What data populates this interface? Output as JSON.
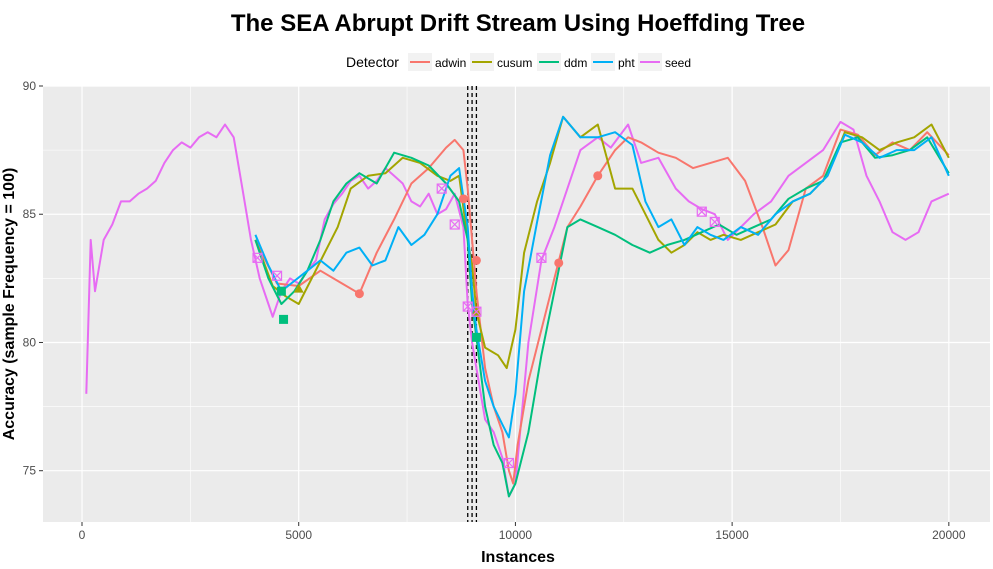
{
  "chart_data": {
    "type": "line",
    "title": "The SEA Abrupt Drift Stream Using Hoeffding Tree",
    "xlabel": "Instances",
    "ylabel": "Accuracy (sample Frequency = 100)",
    "xlim": [
      -900,
      20950
    ],
    "ylim": [
      73,
      90
    ],
    "xticks": [
      0,
      5000,
      10000,
      15000,
      20000
    ],
    "xtick_labels": [
      "0",
      "5000",
      "10000",
      "15000",
      "20000"
    ],
    "yticks": [
      75,
      80,
      85,
      90
    ],
    "ytick_labels": [
      "75",
      "80",
      "85",
      "90"
    ],
    "grid": true,
    "legend": {
      "title": "Detector",
      "position": "top"
    },
    "drift_lines": [
      8900,
      9000,
      9100
    ],
    "series": [
      {
        "name": "adwin",
        "color": "#F8766D",
        "points": [
          [
            4000,
            84
          ],
          [
            4500,
            82.3
          ],
          [
            5000,
            82.2
          ],
          [
            5500,
            82.8
          ],
          [
            6000,
            82.3
          ],
          [
            6400,
            81.9
          ],
          [
            6800,
            83.5
          ],
          [
            7200,
            84.8
          ],
          [
            7600,
            86.2
          ],
          [
            8000,
            86.8
          ],
          [
            8400,
            87.6
          ],
          [
            8600,
            87.9
          ],
          [
            8800,
            87.5
          ],
          [
            8900,
            86
          ],
          [
            9000,
            84
          ],
          [
            9100,
            82
          ],
          [
            9300,
            79
          ],
          [
            9500,
            77.5
          ],
          [
            9700,
            76.5
          ],
          [
            9850,
            75
          ],
          [
            9950,
            74.5
          ],
          [
            10050,
            76
          ],
          [
            10300,
            78.5
          ],
          [
            10600,
            80.5
          ],
          [
            10900,
            82.5
          ],
          [
            11200,
            84.5
          ],
          [
            11500,
            85.3
          ],
          [
            11900,
            86.5
          ],
          [
            12300,
            87.5
          ],
          [
            12600,
            88
          ],
          [
            12900,
            87.8
          ],
          [
            13300,
            87.4
          ],
          [
            13700,
            87.2
          ],
          [
            14100,
            86.8
          ],
          [
            14500,
            87
          ],
          [
            14900,
            87.2
          ],
          [
            15300,
            86.3
          ],
          [
            15700,
            84.5
          ],
          [
            16000,
            83
          ],
          [
            16300,
            83.6
          ],
          [
            16700,
            86
          ],
          [
            17100,
            86.5
          ],
          [
            17500,
            88.3
          ],
          [
            17900,
            88.1
          ],
          [
            18300,
            87.3
          ],
          [
            18700,
            87.8
          ],
          [
            19100,
            87.5
          ],
          [
            19500,
            88.2
          ],
          [
            20000,
            87.3
          ]
        ],
        "markers": [
          [
            6400,
            81.9
          ],
          [
            8800,
            85.6
          ],
          [
            9100,
            83.2
          ],
          [
            11000,
            83.1
          ],
          [
            11900,
            86.5
          ]
        ]
      },
      {
        "name": "cusum",
        "color": "#A3A500",
        "points": [
          [
            4000,
            84
          ],
          [
            4400,
            82.2
          ],
          [
            4700,
            81.8
          ],
          [
            5000,
            81.5
          ],
          [
            5300,
            82.5
          ],
          [
            5600,
            83.5
          ],
          [
            5900,
            84.5
          ],
          [
            6200,
            86
          ],
          [
            6600,
            86.5
          ],
          [
            7000,
            86.6
          ],
          [
            7400,
            87.2
          ],
          [
            7800,
            87
          ],
          [
            8200,
            86.5
          ],
          [
            8500,
            86.3
          ],
          [
            8700,
            86.5
          ],
          [
            8900,
            84
          ],
          [
            9000,
            83
          ],
          [
            9100,
            81.2
          ],
          [
            9300,
            79.8
          ],
          [
            9600,
            79.5
          ],
          [
            9800,
            79
          ],
          [
            10000,
            80.5
          ],
          [
            10200,
            83.5
          ],
          [
            10500,
            85.5
          ],
          [
            10800,
            87
          ],
          [
            11100,
            88.8
          ],
          [
            11500,
            88
          ],
          [
            11900,
            88.5
          ],
          [
            12300,
            86
          ],
          [
            12700,
            86
          ],
          [
            13000,
            85
          ],
          [
            13300,
            84
          ],
          [
            13600,
            83.5
          ],
          [
            13900,
            83.8
          ],
          [
            14200,
            84.3
          ],
          [
            14500,
            84
          ],
          [
            14800,
            84.2
          ],
          [
            15200,
            84
          ],
          [
            15600,
            84.3
          ],
          [
            16000,
            84.6
          ],
          [
            16400,
            85.5
          ],
          [
            16800,
            85.8
          ],
          [
            17200,
            86.5
          ],
          [
            17600,
            88.2
          ],
          [
            18000,
            88
          ],
          [
            18400,
            87.5
          ],
          [
            18800,
            87.8
          ],
          [
            19200,
            88
          ],
          [
            19600,
            88.5
          ],
          [
            20000,
            87.2
          ]
        ],
        "markers": [
          [
            5000,
            82.1
          ],
          [
            9100,
            81.2
          ]
        ]
      },
      {
        "name": "ddm",
        "color": "#00BF7D",
        "points": [
          [
            4000,
            84
          ],
          [
            4300,
            82.5
          ],
          [
            4600,
            81.5
          ],
          [
            4900,
            82
          ],
          [
            5200,
            82.8
          ],
          [
            5500,
            84
          ],
          [
            5800,
            85.5
          ],
          [
            6100,
            86.2
          ],
          [
            6400,
            86.6
          ],
          [
            6800,
            86.2
          ],
          [
            7200,
            87.4
          ],
          [
            7600,
            87.2
          ],
          [
            8000,
            86.9
          ],
          [
            8400,
            86.2
          ],
          [
            8700,
            85.5
          ],
          [
            8900,
            84
          ],
          [
            9000,
            81.5
          ],
          [
            9100,
            80.2
          ],
          [
            9300,
            77.5
          ],
          [
            9500,
            76
          ],
          [
            9700,
            75.3
          ],
          [
            9850,
            74
          ],
          [
            10000,
            74.5
          ],
          [
            10300,
            76.5
          ],
          [
            10600,
            79.5
          ],
          [
            10900,
            82
          ],
          [
            11200,
            84.5
          ],
          [
            11500,
            84.8
          ],
          [
            11900,
            84.5
          ],
          [
            12300,
            84.2
          ],
          [
            12700,
            83.8
          ],
          [
            13100,
            83.5
          ],
          [
            13500,
            83.8
          ],
          [
            13900,
            84
          ],
          [
            14300,
            84.3
          ],
          [
            14700,
            84.6
          ],
          [
            15100,
            84.2
          ],
          [
            15500,
            84.5
          ],
          [
            15900,
            84.8
          ],
          [
            16300,
            85.6
          ],
          [
            16700,
            86
          ],
          [
            17100,
            86.3
          ],
          [
            17500,
            87.8
          ],
          [
            17900,
            88
          ],
          [
            18300,
            87.2
          ],
          [
            18700,
            87.3
          ],
          [
            19100,
            87.5
          ],
          [
            19500,
            88
          ],
          [
            20000,
            86.6
          ]
        ],
        "markers": [
          [
            4600,
            82
          ],
          [
            4650,
            80.9
          ],
          [
            9100,
            80.2
          ]
        ]
      },
      {
        "name": "pht",
        "color": "#00B0F6",
        "points": [
          [
            4000,
            84.2
          ],
          [
            4300,
            83
          ],
          [
            4600,
            82
          ],
          [
            4900,
            82.4
          ],
          [
            5200,
            82.8
          ],
          [
            5500,
            83.2
          ],
          [
            5800,
            82.8
          ],
          [
            6100,
            83.5
          ],
          [
            6400,
            83.7
          ],
          [
            6700,
            83
          ],
          [
            7000,
            83.2
          ],
          [
            7300,
            84.5
          ],
          [
            7600,
            83.8
          ],
          [
            7900,
            84.2
          ],
          [
            8200,
            85
          ],
          [
            8500,
            86.5
          ],
          [
            8700,
            86.8
          ],
          [
            8900,
            84.5
          ],
          [
            9000,
            82
          ],
          [
            9100,
            80.5
          ],
          [
            9300,
            78.5
          ],
          [
            9500,
            77.5
          ],
          [
            9700,
            76.8
          ],
          [
            9850,
            76.3
          ],
          [
            10000,
            78
          ],
          [
            10200,
            82
          ],
          [
            10500,
            84.7
          ],
          [
            10800,
            87.3
          ],
          [
            11100,
            88.8
          ],
          [
            11500,
            88
          ],
          [
            11900,
            88
          ],
          [
            12300,
            88.2
          ],
          [
            12700,
            87.7
          ],
          [
            13000,
            85.5
          ],
          [
            13300,
            84.5
          ],
          [
            13600,
            84.8
          ],
          [
            13900,
            83.8
          ],
          [
            14200,
            84.5
          ],
          [
            14500,
            84.2
          ],
          [
            14800,
            84
          ],
          [
            15200,
            84.5
          ],
          [
            15600,
            84.2
          ],
          [
            16000,
            85
          ],
          [
            16400,
            85.5
          ],
          [
            16800,
            85.8
          ],
          [
            17200,
            86.5
          ],
          [
            17600,
            88.1
          ],
          [
            18000,
            87.8
          ],
          [
            18400,
            87.2
          ],
          [
            18800,
            87.5
          ],
          [
            19200,
            87.5
          ],
          [
            19600,
            88
          ],
          [
            20000,
            86.5
          ]
        ],
        "markers": []
      },
      {
        "name": "seed",
        "color": "#E76BF3",
        "points": [
          [
            100,
            78
          ],
          [
            200,
            84
          ],
          [
            300,
            82
          ],
          [
            500,
            84
          ],
          [
            700,
            84.6
          ],
          [
            900,
            85.5
          ],
          [
            1100,
            85.5
          ],
          [
            1300,
            85.8
          ],
          [
            1500,
            86
          ],
          [
            1700,
            86.3
          ],
          [
            1900,
            87
          ],
          [
            2100,
            87.5
          ],
          [
            2300,
            87.8
          ],
          [
            2500,
            87.6
          ],
          [
            2700,
            88
          ],
          [
            2900,
            88.2
          ],
          [
            3100,
            88
          ],
          [
            3300,
            88.5
          ],
          [
            3500,
            88
          ],
          [
            3700,
            86
          ],
          [
            3900,
            84
          ],
          [
            4100,
            82.5
          ],
          [
            4300,
            81.5
          ],
          [
            4400,
            81
          ],
          [
            4600,
            82
          ],
          [
            4800,
            82.5
          ],
          [
            5000,
            82.3
          ],
          [
            5200,
            82.8
          ],
          [
            5400,
            83.2
          ],
          [
            5600,
            84.8
          ],
          [
            5800,
            85.4
          ],
          [
            6000,
            85.8
          ],
          [
            6200,
            86.3
          ],
          [
            6400,
            86.5
          ],
          [
            6600,
            86
          ],
          [
            6800,
            86.3
          ],
          [
            7000,
            86.8
          ],
          [
            7200,
            86.5
          ],
          [
            7400,
            86.2
          ],
          [
            7600,
            85.5
          ],
          [
            7800,
            85.3
          ],
          [
            8000,
            85.8
          ],
          [
            8200,
            85
          ],
          [
            8400,
            85.2
          ],
          [
            8600,
            85.8
          ],
          [
            8800,
            84.5
          ],
          [
            8900,
            81.5
          ],
          [
            9000,
            80
          ],
          [
            9100,
            79
          ],
          [
            9300,
            77
          ],
          [
            9500,
            76.5
          ],
          [
            9700,
            75.5
          ],
          [
            9850,
            74
          ],
          [
            10000,
            74.5
          ],
          [
            10300,
            80
          ],
          [
            10600,
            83.2
          ],
          [
            10900,
            84.5
          ],
          [
            11200,
            86
          ],
          [
            11500,
            87.5
          ],
          [
            11900,
            88
          ],
          [
            12200,
            87.6
          ],
          [
            12600,
            88.5
          ],
          [
            12900,
            87
          ],
          [
            13300,
            87.2
          ],
          [
            13700,
            86
          ],
          [
            14000,
            85.5
          ],
          [
            14300,
            85.2
          ],
          [
            14600,
            85
          ],
          [
            14900,
            84
          ],
          [
            15200,
            84.5
          ],
          [
            15500,
            85
          ],
          [
            15900,
            85.5
          ],
          [
            16300,
            86.5
          ],
          [
            16700,
            87
          ],
          [
            17100,
            87.5
          ],
          [
            17500,
            88.6
          ],
          [
            17800,
            88.3
          ],
          [
            18100,
            86.5
          ],
          [
            18400,
            85.5
          ],
          [
            18700,
            84.3
          ],
          [
            19000,
            84
          ],
          [
            19300,
            84.3
          ],
          [
            19600,
            85.5
          ],
          [
            20000,
            85.8
          ]
        ],
        "markers": [
          [
            4050,
            83.3
          ],
          [
            4500,
            82.6
          ],
          [
            8300,
            86
          ],
          [
            8600,
            84.6
          ],
          [
            8900,
            81.4
          ],
          [
            9100,
            81.2
          ],
          [
            9850,
            75.3
          ],
          [
            10600,
            83.3
          ],
          [
            14300,
            85.1
          ],
          [
            14600,
            84.7
          ]
        ]
      }
    ]
  }
}
